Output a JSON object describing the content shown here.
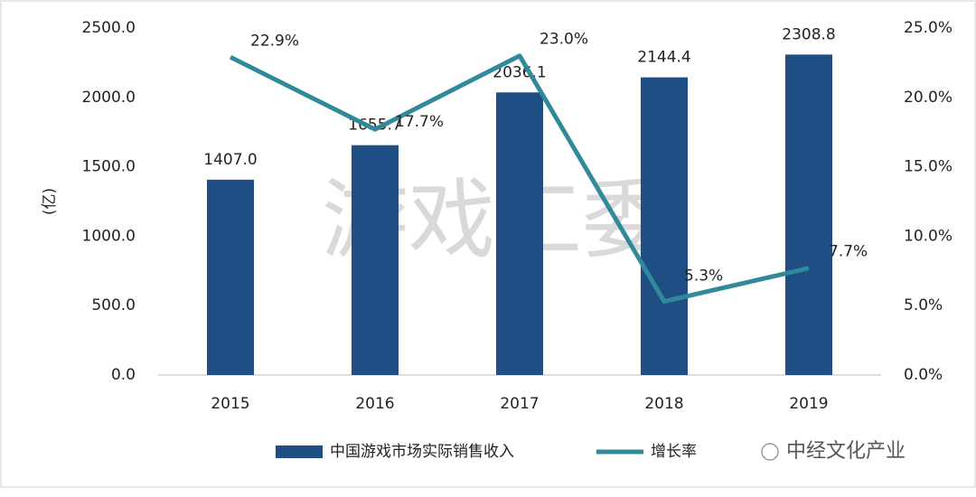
{
  "chart_data": {
    "type": "bar-line",
    "y_label": "(亿)",
    "categories": [
      "2015",
      "2016",
      "2017",
      "2018",
      "2019"
    ],
    "series": [
      {
        "name": "中国游戏市场实际销售收入",
        "type": "bar",
        "color": "#1f4e85",
        "values": [
          1407.0,
          1655.7,
          2036.1,
          2144.4,
          2308.8
        ],
        "value_labels": [
          "1407.0",
          "1655.7",
          "2036.1",
          "2144.4",
          "2308.8"
        ]
      },
      {
        "name": "增长率",
        "type": "line",
        "axis": "y2",
        "color": "#31899b",
        "values": [
          22.9,
          17.7,
          23.0,
          5.3,
          7.7
        ],
        "value_labels": [
          "22.9%",
          "17.7%",
          "23.0%",
          "5.3%",
          "7.7%"
        ]
      }
    ],
    "ylim": [
      0,
      2500
    ],
    "yticks": [
      {
        "value": 0,
        "label": "0.0"
      },
      {
        "value": 500,
        "label": "500.0"
      },
      {
        "value": 1000,
        "label": "1000.0"
      },
      {
        "value": 1500,
        "label": "1500.0"
      },
      {
        "value": 2000,
        "label": "2000.0"
      },
      {
        "value": 2500,
        "label": "2500.0"
      }
    ],
    "y2lim": [
      0,
      25
    ],
    "y2ticks": [
      {
        "value": 0,
        "label": "0.0%"
      },
      {
        "value": 5,
        "label": "5.0%"
      },
      {
        "value": 10,
        "label": "10.0%"
      },
      {
        "value": 15,
        "label": "15.0%"
      },
      {
        "value": 20,
        "label": "20.0%"
      },
      {
        "value": 25,
        "label": "25.0%"
      }
    ],
    "grid": false,
    "legend": "bottom",
    "watermark": "游戏工委",
    "source": "中经文化产业"
  }
}
